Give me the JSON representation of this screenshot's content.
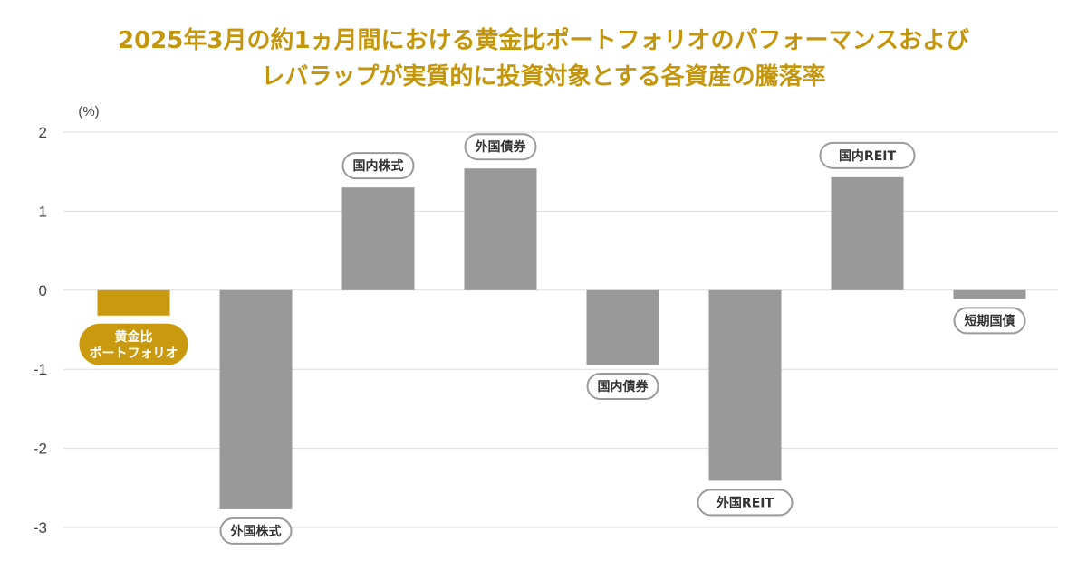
{
  "title_lines": [
    "2025年3月の約1ヵ月間における黄金比ポートフォリオのパフォーマンスおよび",
    "レバラップが実質的に投資対象とする各資産の騰落率"
  ],
  "chart_data": {
    "type": "bar",
    "title": "2025年3月の約1ヵ月間における黄金比ポートフォリオのパフォーマンスおよびレバラップが実質的に投資対象とする各資産の騰落率",
    "unit": "(%)",
    "ylim": [
      -3,
      2
    ],
    "yticks": [
      "2",
      "1",
      "0",
      "-1",
      "-2",
      "-3"
    ],
    "ytick_values": [
      2,
      1,
      0,
      -1,
      -2,
      -3
    ],
    "grid": true,
    "categories": [
      [
        "黄金比",
        "ポートフォリオ"
      ],
      [
        "外国株式"
      ],
      [
        "国内株式"
      ],
      [
        "外国債券"
      ],
      [
        "国内債券"
      ],
      [
        "外国REIT"
      ],
      [
        "国内REIT"
      ],
      [
        "短期国債"
      ]
    ],
    "values": [
      -0.32,
      -2.77,
      1.3,
      1.54,
      -0.94,
      -2.41,
      1.43,
      -0.11
    ],
    "highlight_index": 0
  },
  "colors": {
    "title": "#c4960d",
    "highlight": "#c99a10",
    "bar": "#999999",
    "grid": "#dddddd",
    "axis_text": "#444444",
    "pill_border": "#9a9a9a"
  }
}
